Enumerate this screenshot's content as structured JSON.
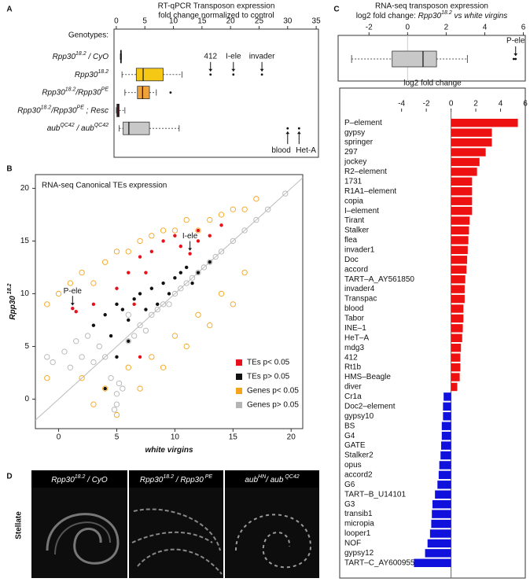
{
  "panel_labels": [
    "A",
    "B",
    "C",
    "D"
  ],
  "chart_data": [
    {
      "type": "boxplot",
      "title": "RT-qPCR Transposon expression",
      "subtitle": "fold change normalized to control",
      "group_label": "Genotypes:",
      "categories": [
        [
          {
            "text": "Rpp30",
            "italic": true
          },
          {
            "text": "18.2",
            "italic": true,
            "sup": true
          },
          {
            "text": " / CyO",
            "italic": true
          }
        ],
        [
          {
            "text": "Rpp30",
            "italic": true
          },
          {
            "text": "18.2",
            "italic": true,
            "sup": true
          }
        ],
        [
          {
            "text": "Rpp30",
            "italic": true
          },
          {
            "text": "18.2",
            "italic": true,
            "sup": true
          },
          {
            "text": "/Rpp30",
            "italic": true
          },
          {
            "text": "PE",
            "italic": true,
            "sup": true
          }
        ],
        [
          {
            "text": "Rpp30",
            "italic": true
          },
          {
            "text": "18.2",
            "italic": true,
            "sup": true
          },
          {
            "text": "/Rpp30",
            "italic": true
          },
          {
            "text": "PE",
            "italic": true,
            "sup": true
          },
          {
            "text": " ; Resc",
            "italic": true
          }
        ],
        [
          {
            "text": "aub",
            "italic": true
          },
          {
            "text": "QC42",
            "italic": true,
            "sup": true
          },
          {
            "text": " / aub",
            "italic": true
          },
          {
            "text": "QC42",
            "italic": true,
            "sup": true
          }
        ]
      ],
      "boxes": [
        {
          "min": 0.7,
          "q1": 0.75,
          "median": 0.8,
          "q3": 0.85,
          "max": 0.9,
          "color": "#111111",
          "outliers": []
        },
        {
          "min": 1,
          "q1": 3.5,
          "median": 4.7,
          "q3": 8.2,
          "max": 11.5,
          "color": "#f5c816",
          "outliers": [
            16.5,
            20.5,
            25.5
          ]
        },
        {
          "min": 1.5,
          "q1": 3.7,
          "median": 4.6,
          "q3": 5.8,
          "max": 7,
          "color": "#f0a23a",
          "outliers": [
            9.5
          ]
        },
        {
          "min": 0,
          "q1": 0.1,
          "median": 0.3,
          "q3": 0.5,
          "max": 1.5,
          "color": "#8b1a1a",
          "outliers": []
        },
        {
          "min": 0.5,
          "q1": 1.2,
          "median": 2.2,
          "q3": 5.8,
          "max": 11,
          "color": "#c8c8c8",
          "outliers": [
            30,
            32
          ]
        }
      ],
      "xlim": [
        -0.4,
        35.4
      ],
      "xticks": [
        0,
        5,
        10,
        15,
        20,
        25,
        30,
        35
      ],
      "annotations": [
        {
          "text": "412",
          "x": 16.5,
          "category": 1,
          "position": "above"
        },
        {
          "text": "I-ele",
          "x": 20.5,
          "category": 1,
          "position": "above"
        },
        {
          "text": "invader",
          "x": 25.5,
          "category": 1,
          "position": "above"
        },
        {
          "text": "blood",
          "x": 30,
          "category": 4,
          "position": "below"
        },
        {
          "text": "Het-A",
          "x": 32,
          "category": 4,
          "position": "below"
        }
      ]
    },
    {
      "type": "scatter",
      "title": "RNA-seq Canonical TEs expression",
      "xlabel": [
        {
          "text": "white virgins",
          "italic": true
        }
      ],
      "ylabel": [
        {
          "text": "Rpp30",
          "italic": true
        },
        {
          "text": " 18.2",
          "italic": true,
          "sup": true
        }
      ],
      "xlim": [
        -2,
        21
      ],
      "ylim": [
        -2.8,
        21.3
      ],
      "xticks": [
        0,
        5,
        10,
        15,
        20
      ],
      "yticks": [
        0,
        5,
        10,
        15,
        20
      ],
      "identity_line": true,
      "legend": "lower right",
      "series": [
        {
          "name": "TEs p< 0.05",
          "color": "#e8101a",
          "marker": "filled",
          "x": [
            1.2,
            1.5,
            3,
            5,
            6,
            7,
            7.5,
            8,
            9,
            10,
            10.5,
            11.3,
            12,
            12,
            13,
            14,
            7,
            6.5
          ],
          "y": [
            8.6,
            8.3,
            9,
            10.5,
            12,
            13.5,
            12,
            14,
            15,
            15.5,
            14.5,
            13.8,
            16,
            15,
            15.5,
            16.5,
            4,
            9
          ]
        },
        {
          "name": "TEs p> 0.05",
          "color": "#111111",
          "marker": "filled",
          "x": [
            3,
            4,
            4.5,
            5,
            5.5,
            6,
            6.5,
            7,
            7.5,
            8,
            8.5,
            9,
            9.5,
            10,
            10.5,
            11,
            11.5,
            12,
            13,
            5,
            4,
            6
          ],
          "y": [
            7,
            8,
            6,
            9,
            8.5,
            7.5,
            9.5,
            10,
            8.5,
            10.5,
            9,
            11,
            10,
            11.5,
            12,
            12.5,
            11,
            12,
            13,
            4,
            1,
            5.5
          ]
        },
        {
          "name": "Genes p< 0.05",
          "color": "#f5a31a",
          "marker": "open",
          "x": [
            -1,
            0,
            1,
            2,
            3,
            4,
            5,
            6,
            7,
            8,
            9,
            10,
            11,
            12,
            13,
            14,
            15,
            16,
            17,
            3,
            5,
            7,
            9,
            11,
            13,
            15,
            -1,
            2,
            6,
            8,
            10,
            12,
            14,
            16,
            4
          ],
          "y": [
            9,
            10,
            11,
            12,
            11,
            13,
            14,
            14,
            15,
            15.5,
            16,
            16,
            17,
            16,
            17,
            17.5,
            18,
            18,
            19,
            -0.5,
            -1.5,
            1,
            3,
            5,
            7,
            9,
            2,
            2,
            3,
            4,
            6,
            8,
            10,
            12,
            1
          ]
        },
        {
          "name": "Genes p> 0.05",
          "color": "#b4b4b4",
          "marker": "open",
          "x": [
            -1,
            -0.5,
            0.5,
            1,
            2,
            3,
            4,
            4.5,
            5,
            5,
            5.5,
            6,
            6.5,
            7,
            7.5,
            8,
            8.5,
            9,
            9.5,
            10,
            10.5,
            11,
            11.5,
            12,
            12.5,
            13,
            13.5,
            14,
            15,
            16,
            17,
            18,
            19.5,
            4.8,
            5.2,
            3.5,
            2.5,
            6,
            1.5
          ],
          "y": [
            4,
            3.5,
            4.5,
            3,
            4,
            3.5,
            4,
            2,
            0.5,
            -0.5,
            1,
            5.5,
            6,
            7,
            6.5,
            8,
            8.5,
            9,
            9,
            10,
            10.5,
            11,
            11.5,
            12,
            12.5,
            13,
            13.5,
            14,
            15,
            16,
            17,
            18,
            19.5,
            -1,
            1.5,
            5,
            6,
            8,
            5.5
          ]
        }
      ],
      "annotations": [
        {
          "text": "P-ele",
          "x": 1.2,
          "y": 8.6
        },
        {
          "text": "I-ele",
          "x": 11.3,
          "y": 13.8
        }
      ]
    },
    {
      "type": "boxplot",
      "title": "RNA-seq transposon expression",
      "subtitle": [
        {
          "text": "log2 fold change: "
        },
        {
          "text": "Rpp30",
          "italic": true
        },
        {
          "text": "18.2",
          "italic": true,
          "sup": true
        },
        {
          "text": " vs white virgins",
          "italic": true
        }
      ],
      "boxes": [
        {
          "min": -2.9,
          "q1": -0.8,
          "median": 0.8,
          "q3": 1.5,
          "max": 3.1,
          "color": "#c8c8c8",
          "outliers": [
            5.5,
            5.6
          ]
        }
      ],
      "xlim": [
        -3.6,
        6.1
      ],
      "xticks": [
        -2,
        0,
        2,
        4,
        6
      ],
      "zero_line": true,
      "annotations": [
        {
          "text": "P-ele",
          "x": 5.6,
          "category": 0,
          "position": "above"
        }
      ]
    },
    {
      "type": "barh",
      "title": "log2 fold change",
      "categories": [
        "P–element",
        "gypsy",
        "springer",
        "297",
        "jockey",
        "R2–element",
        "1731",
        "R1A1–element",
        "copia",
        "I–element",
        "Tirant",
        "Stalker",
        "flea",
        "invader1",
        "Doc",
        "accord",
        "TART–A_AY561850",
        "invader4",
        "Transpac",
        "blood",
        "Tabor",
        "INE–1",
        "HeT–A",
        "mdg3",
        "412",
        "Rt1b",
        "HMS–Beagle",
        "diver",
        "Cr1a",
        "Doc2–element",
        "gypsy10",
        "BS",
        "G4",
        "GATE",
        "Stalker2",
        "opus",
        "accord2",
        "G6",
        "TART–B_U14101",
        "G3",
        "transib1",
        "micropia",
        "looper1",
        "NOF",
        "gypsy12",
        "TART–C_AY600955"
      ],
      "values": [
        5.4,
        3.3,
        3.3,
        2.8,
        2.3,
        2.1,
        1.7,
        1.7,
        1.7,
        1.7,
        1.5,
        1.45,
        1.4,
        1.35,
        1.3,
        1.25,
        1.15,
        1.1,
        1.1,
        1.0,
        1.0,
        0.95,
        0.9,
        0.8,
        0.75,
        0.75,
        0.7,
        0.5,
        -0.6,
        -0.65,
        -0.65,
        -0.75,
        -0.75,
        -0.8,
        -0.85,
        -0.95,
        -1.0,
        -1.1,
        -1.3,
        -1.5,
        -1.55,
        -1.6,
        -1.7,
        -1.9,
        -2.1,
        -3.0
      ],
      "color_positive": "#ee1111",
      "color_negative": "#1111dd",
      "xlim": [
        -9,
        6
      ],
      "xticks": [
        -4,
        -2,
        0,
        2,
        4,
        6
      ],
      "zero_line": true
    }
  ],
  "micrographs": {
    "row_label": "Stellate",
    "panels": [
      [
        {
          "text": "Rpp30",
          "italic": true
        },
        {
          "text": "18.2",
          "italic": true,
          "sup": true
        },
        {
          "text": " / CyO",
          "italic": true
        }
      ],
      [
        {
          "text": "Rpp30",
          "italic": true
        },
        {
          "text": "18.2",
          "italic": true,
          "sup": true
        },
        {
          "text": " / Rpp30",
          "italic": true
        },
        {
          "text": " PE",
          "italic": true,
          "sup": true
        }
      ],
      [
        {
          "text": "aub",
          "italic": true
        },
        {
          "text": "HN",
          "italic": true,
          "sup": true
        },
        {
          "text": "/ aub",
          "italic": true
        },
        {
          "text": " QC42",
          "italic": true,
          "sup": true
        }
      ]
    ]
  }
}
